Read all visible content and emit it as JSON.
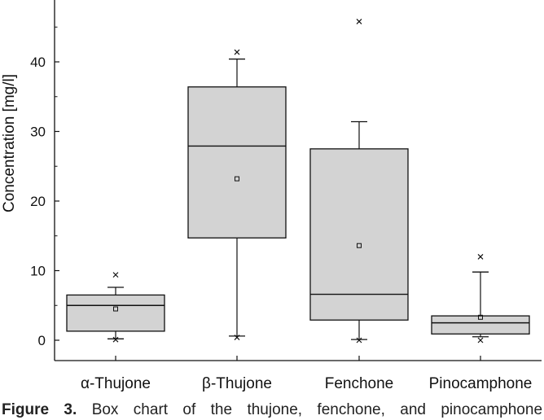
{
  "chart_data": {
    "type": "box",
    "ylabel": "Concentration [mg/l]",
    "ylim": [
      -3,
      50
    ],
    "yticks": [
      0,
      10,
      20,
      30,
      40
    ],
    "grid": false,
    "categories": [
      "α-Thujone",
      "β-Thujone",
      "Fenchone",
      "Pinocamphone"
    ],
    "boxes": [
      {
        "category": "α-Thujone",
        "whisker_low": 0.2,
        "q1": 1.3,
        "median": 5.0,
        "q3": 6.5,
        "whisker_high": 7.6,
        "mean": 4.5,
        "outliers_high": [
          9.4
        ],
        "extreme_low": 0.1
      },
      {
        "category": "β-Thujone",
        "whisker_low": 0.6,
        "q1": 14.7,
        "median": 27.9,
        "q3": 36.4,
        "whisker_high": 40.4,
        "mean": 23.2,
        "outliers_high": [
          41.4
        ],
        "extreme_low": 0.4
      },
      {
        "category": "Fenchone",
        "whisker_low": 0.1,
        "q1": 2.9,
        "median": 6.6,
        "q3": 27.5,
        "whisker_high": 31.4,
        "mean": 13.6,
        "outliers_high": [
          45.8
        ],
        "extreme_low": 0.0
      },
      {
        "category": "Pinocamphone",
        "whisker_low": 0.5,
        "q1": 0.9,
        "median": 2.5,
        "q3": 3.5,
        "whisker_high": 9.8,
        "mean": 3.3,
        "outliers_high": [
          12.0
        ],
        "extreme_low": 0.0
      }
    ]
  },
  "caption": {
    "label": "Figure 3.",
    "text": "Box chart of the thujone, fenchone, and pinocamphone"
  }
}
